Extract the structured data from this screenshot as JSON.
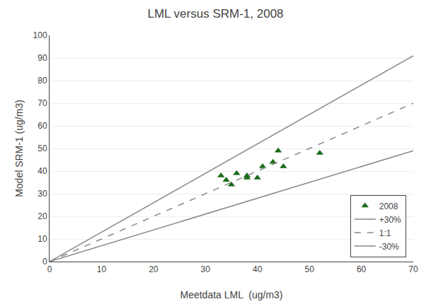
{
  "chart_data": {
    "type": "scatter",
    "title": "LML versus SRM-1, 2008",
    "x_label": "Meetdata LML  (ug/m3)",
    "y_label": "Model SRM-1 (ug/m3)",
    "xlim": [
      0,
      70
    ],
    "ylim": [
      0,
      100
    ],
    "xticks": [
      0,
      10,
      20,
      30,
      40,
      50,
      60,
      70
    ],
    "yticks": [
      0,
      10,
      20,
      30,
      40,
      50,
      60,
      70,
      80,
      90,
      100
    ],
    "grid": "y",
    "legend": "lower right",
    "series": [
      {
        "name": "2008",
        "type": "scatter",
        "marker": "triangle-up",
        "color": "#1a6b1a",
        "x": [
          33,
          34,
          35,
          36,
          38,
          38,
          40,
          41,
          43,
          44,
          45,
          52
        ],
        "values": [
          38,
          36,
          34,
          39,
          37,
          38,
          37,
          42,
          44,
          49,
          42,
          48
        ]
      },
      {
        "name": "+30%",
        "type": "line",
        "line_style": "solid",
        "color": "#888888",
        "x": [
          0,
          70
        ],
        "values": [
          0,
          91
        ]
      },
      {
        "name": "1:1",
        "type": "line",
        "line_style": "dash",
        "color": "#888888",
        "x": [
          0,
          70
        ],
        "values": [
          0,
          70
        ]
      },
      {
        "name": "-30%",
        "type": "line",
        "line_style": "solid",
        "color": "#888888",
        "x": [
          0,
          70
        ],
        "values": [
          0,
          49
        ]
      }
    ]
  }
}
